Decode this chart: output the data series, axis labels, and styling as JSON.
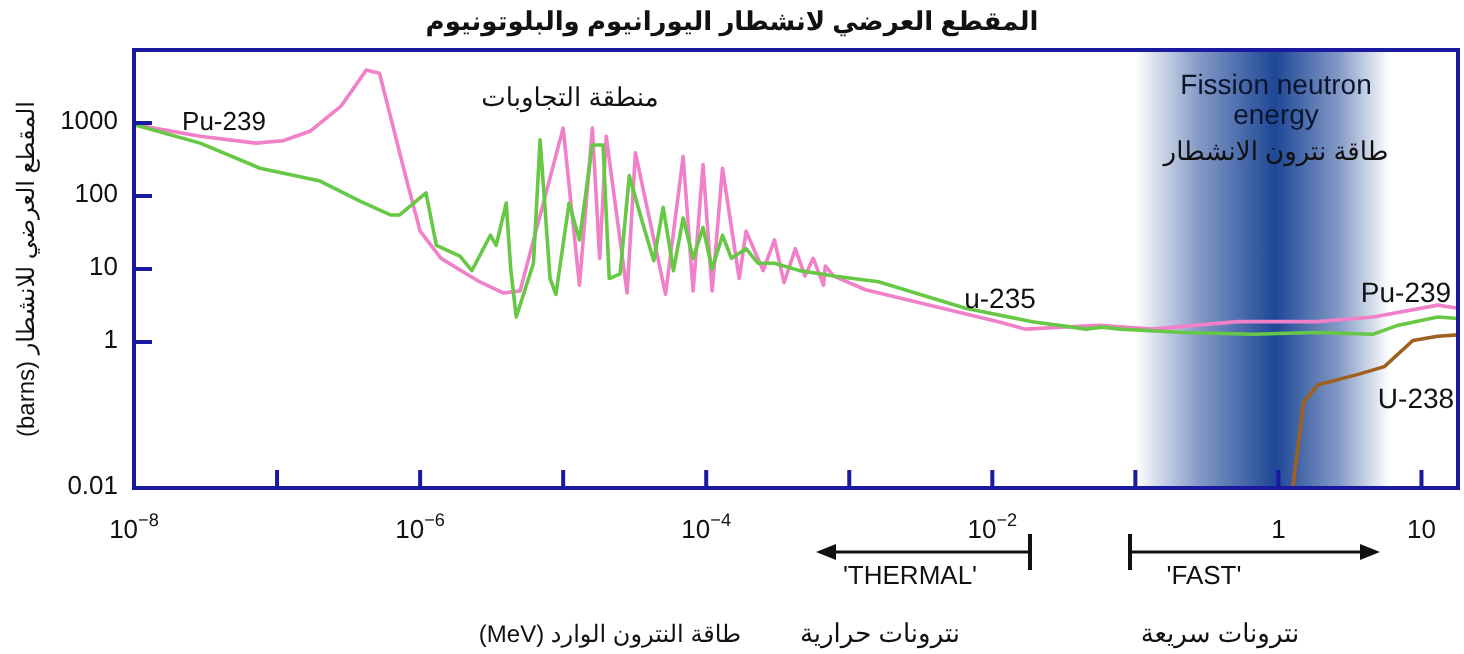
{
  "chart_data": {
    "type": "line",
    "title": "المقطع العرضي لانشطار اليورانيوم والبلوتونيوم",
    "xlabel": "طاقة النترون الوارد (MeV)",
    "ylabel": "المقطع العرضي للانشطار (barns)",
    "log": "xy",
    "xlim": [
      1e-08,
      18
    ],
    "xticks": [
      {
        "value": 1e-08,
        "label": "10$^{−8}$"
      },
      {
        "value": 1e-07,
        "label": null
      },
      {
        "value": 1e-06,
        "label": "10$^{−6}$"
      },
      {
        "value": 1e-05,
        "label": null
      },
      {
        "value": 0.0001,
        "label": "10$^{−4}$"
      },
      {
        "value": 0.001,
        "label": null
      },
      {
        "value": 0.01,
        "label": "10$^{−2}$"
      },
      {
        "value": 0.1,
        "label": null
      },
      1,
      10
    ],
    "ylim": [
      0.01,
      10000
    ],
    "yticks": [
      0.01,
      1,
      10,
      100,
      1000
    ],
    "series": [
      {
        "name": "Pu-239",
        "color": "#f080c8",
        "x": [
          1e-08,
          2.9e-08,
          7.1e-08,
          1.1e-07,
          1.7e-07,
          2.8e-07,
          4.2e-07,
          5.2e-07,
          6.3e-07,
          7.8e-07,
          1e-06,
          1.4e-06,
          2.6e-06,
          3.8e-06,
          5e-06,
          1e-05,
          1.3e-05,
          1.6e-05,
          1.8e-05,
          2e-05,
          2.8e-05,
          3.2e-05,
          5.2e-05,
          6.9e-05,
          8.1e-05,
          9.5e-05,
          0.00011,
          0.00013,
          0.00017,
          0.00019,
          0.00025,
          0.0003,
          0.00035,
          0.00042,
          0.00049,
          0.00056,
          0.00066,
          0.00068,
          0.00078,
          0.0013,
          0.011,
          0.017,
          0.056,
          0.13,
          0.52,
          1.9,
          4.6,
          13,
          18
        ],
        "values": [
          950,
          660,
          530,
          570,
          770,
          1700,
          5300,
          4800,
          1100,
          210,
          33,
          14,
          6.7,
          4.7,
          5,
          850,
          6,
          850,
          14,
          660,
          4.7,
          390,
          4.5,
          350,
          5,
          270,
          5,
          240,
          7.4,
          33,
          9.5,
          25,
          6.5,
          19,
          8,
          14,
          6,
          11,
          8,
          5.2,
          1.9,
          1.5,
          1.7,
          1.5,
          1.9,
          1.9,
          2.2,
          3.2,
          2.9
        ]
      },
      {
        "name": "u-235",
        "color": "#66c844",
        "x": [
          1e-08,
          2.9e-08,
          7.6e-08,
          2e-07,
          3.8e-07,
          6.2e-07,
          7.2e-07,
          1.1e-06,
          1.3e-06,
          1.9e-06,
          2.3e-06,
          3.1e-06,
          3.4e-06,
          4e-06,
          4.3e-06,
          4.7e-06,
          6.2e-06,
          6.9e-06,
          8.1e-06,
          8.9e-06,
          1.1e-05,
          1.3e-05,
          1.6e-05,
          1.9e-05,
          2.1e-05,
          2.5e-05,
          2.9e-05,
          3.6e-05,
          4.3e-05,
          5e-05,
          5.9e-05,
          6.9e-05,
          8.1e-05,
          9.5e-05,
          0.00011,
          0.00013,
          0.00015,
          0.00019,
          0.00023,
          0.0003,
          0.00045,
          0.00078,
          0.0016,
          0.0065,
          0.019,
          0.036,
          0.045,
          0.059,
          0.078,
          0.22,
          0.66,
          1.9,
          4.6,
          6.9,
          13,
          18
        ],
        "values": [
          950,
          530,
          240,
          160,
          85,
          55,
          55,
          110,
          21,
          15,
          9.5,
          29,
          21,
          80,
          10,
          2.2,
          12,
          590,
          7.4,
          4.5,
          80,
          25,
          500,
          500,
          7.4,
          8.6,
          190,
          42,
          13,
          70,
          9.5,
          50,
          14,
          37,
          10,
          29,
          14,
          19,
          12,
          12,
          9.5,
          8,
          6.7,
          2.9,
          1.9,
          1.6,
          1.5,
          1.6,
          1.5,
          1.35,
          1.28,
          1.35,
          1.28,
          1.7,
          2.2,
          2.1
        ]
      },
      {
        "name": "U-238",
        "color": "#a0601e",
        "x": [
          1.26,
          1.5,
          1.9,
          3.6,
          5.5,
          8.7,
          13,
          18
        ],
        "values": [
          0.01,
          0.15,
          0.26,
          0.36,
          0.46,
          1.05,
          1.2,
          1.25
        ]
      }
    ],
    "bands": [
      {
        "axis": "x",
        "from": 0.1,
        "to": 6,
        "label": "Fission neutron energy",
        "color": "#1e4796"
      }
    ],
    "annotations": [
      "Pu-239",
      "منطقة التجاوبات",
      "طاقة نترون الانشطار",
      "'THERMAL'",
      "'FAST'",
      "نترونات حرارية",
      "نترونات سريعة"
    ]
  }
}
